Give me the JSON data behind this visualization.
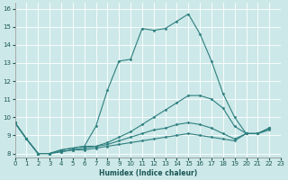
{
  "xlabel": "Humidex (Indice chaleur)",
  "background_color": "#cde8e8",
  "grid_color": "#ffffff",
  "line_color": "#2d7f7f",
  "x_min": 0,
  "x_max": 23,
  "y_min": 7.8,
  "y_max": 16.3,
  "series": [
    [
      9.7,
      8.8,
      8.0,
      8.0,
      8.2,
      8.3,
      8.4,
      9.5,
      11.5,
      13.1,
      13.2,
      14.9,
      14.8,
      14.9,
      15.3,
      15.7,
      14.6,
      13.1,
      11.3,
      10.0,
      9.1,
      9.1,
      9.4
    ],
    [
      9.7,
      8.8,
      8.0,
      8.0,
      8.2,
      8.3,
      8.4,
      8.4,
      8.6,
      8.9,
      9.2,
      9.6,
      10.0,
      10.4,
      10.8,
      11.2,
      11.2,
      11.0,
      10.5,
      9.5,
      9.1,
      9.1,
      9.4
    ],
    [
      9.7,
      8.8,
      8.0,
      8.0,
      8.1,
      8.2,
      8.3,
      8.4,
      8.5,
      8.7,
      8.9,
      9.1,
      9.3,
      9.4,
      9.6,
      9.7,
      9.6,
      9.4,
      9.1,
      8.8,
      9.1,
      9.1,
      9.4
    ],
    [
      9.7,
      8.8,
      8.0,
      8.0,
      8.1,
      8.2,
      8.2,
      8.3,
      8.4,
      8.5,
      8.6,
      8.7,
      8.8,
      8.9,
      9.0,
      9.1,
      9.0,
      8.9,
      8.8,
      8.7,
      9.1,
      9.1,
      9.3
    ]
  ],
  "x_ticks": [
    0,
    1,
    2,
    3,
    4,
    5,
    6,
    7,
    8,
    9,
    10,
    11,
    12,
    13,
    14,
    15,
    16,
    17,
    18,
    19,
    20,
    21,
    22,
    23
  ],
  "y_ticks": [
    8,
    9,
    10,
    11,
    12,
    13,
    14,
    15,
    16
  ],
  "tick_fontsize": 5.0,
  "xlabel_fontsize": 5.5
}
